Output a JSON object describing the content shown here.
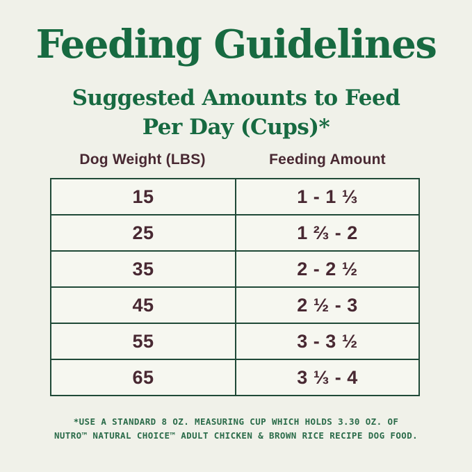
{
  "page": {
    "title": "Feeding Guidelines",
    "subtitle_line1": "Suggested Amounts to Feed",
    "subtitle_line2": "Per Day (Cups)*"
  },
  "table": {
    "columns": [
      "Dog Weight (LBS)",
      "Feeding Amount"
    ],
    "rows": [
      {
        "weight": "15",
        "amount": "1 - 1 ⅓"
      },
      {
        "weight": "25",
        "amount": "1 ⅔ - 2"
      },
      {
        "weight": "35",
        "amount": "2 - 2 ½"
      },
      {
        "weight": "45",
        "amount": "2 ½ - 3"
      },
      {
        "weight": "55",
        "amount": "3 - 3 ½"
      },
      {
        "weight": "65",
        "amount": "3 ⅓ - 4"
      }
    ]
  },
  "footnote": {
    "line1": "*USE A STANDARD 8 OZ. MEASURING CUP WHICH HOLDS 3.30 OZ. OF",
    "line2": "NUTRO™ NATURAL CHOICE™ ADULT CHICKEN & BROWN RICE RECIPE DOG FOOD."
  },
  "colors": {
    "background": "#f0f1e9",
    "heading_green": "#176a41",
    "table_border_green": "#1f4937",
    "table_text_maroon": "#482832",
    "footnote_green": "#2a6b49",
    "cell_background": "#f6f7f0"
  }
}
